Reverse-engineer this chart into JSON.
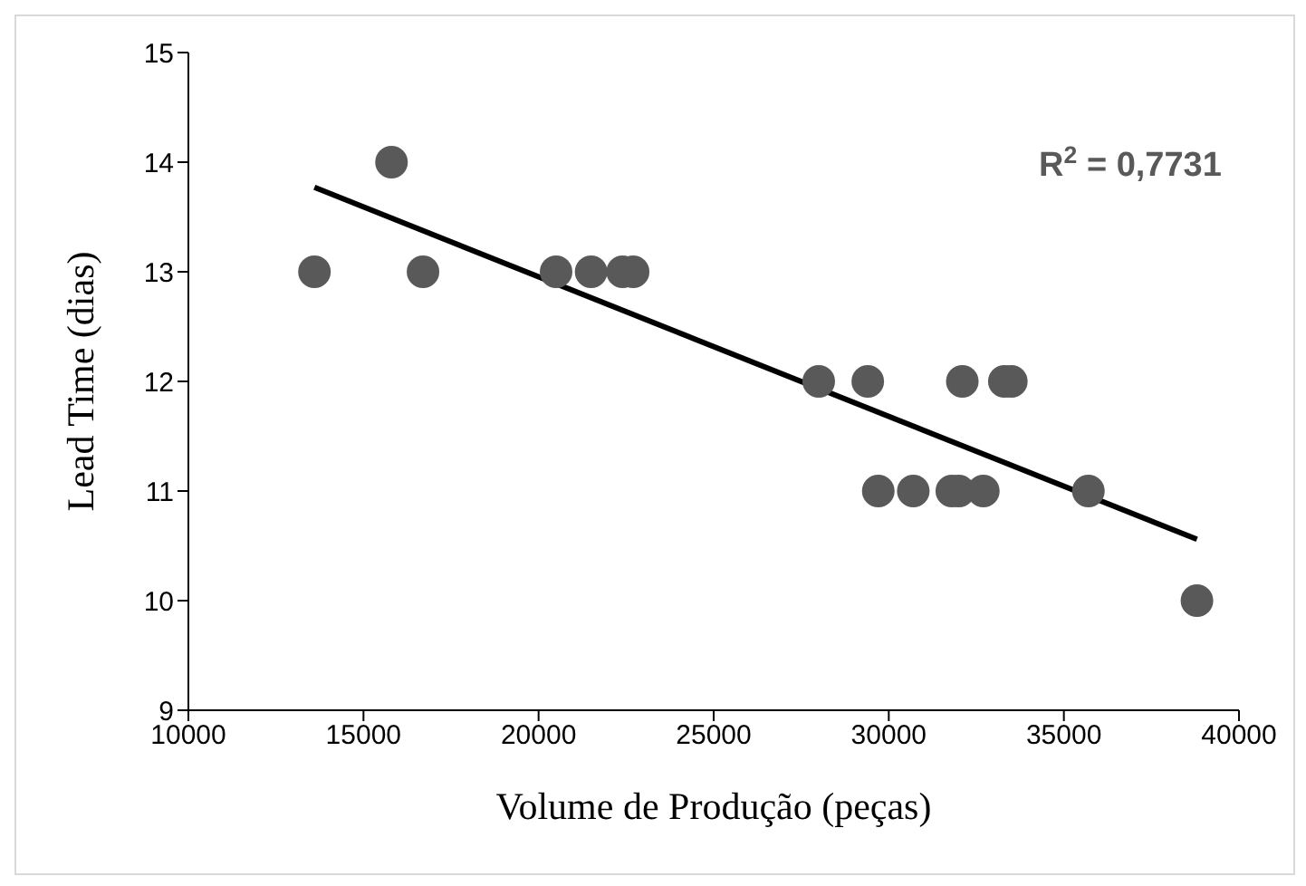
{
  "chart_data": {
    "type": "scatter",
    "xlabel": "Volume de Produção (peças)",
    "ylabel": "Lead Time (dias)",
    "xlim": [
      10000,
      40000
    ],
    "xticks": [
      10000,
      15000,
      20000,
      25000,
      30000,
      35000,
      40000
    ],
    "ylim": [
      9,
      15
    ],
    "yticks": [
      9,
      10,
      11,
      12,
      13,
      14,
      15
    ],
    "grid": false,
    "legend": false,
    "annotations": [
      {
        "text": "R$^{2}$ = 0,7731"
      }
    ],
    "series": [
      {
        "marker": "circle",
        "color": "#595959",
        "x": [
          13600,
          15800,
          16700,
          20500,
          21500,
          22400,
          22700,
          28000,
          29400,
          32100,
          33300,
          33500,
          29700,
          30700,
          31800,
          32000,
          32700,
          35700,
          38800
        ],
        "values": [
          13,
          14,
          13,
          13,
          13,
          13,
          13,
          12,
          12,
          12,
          12,
          12,
          11,
          11,
          11,
          11,
          11,
          11,
          10
        ]
      },
      {
        "type": "line",
        "marker": "none",
        "color": "#000000",
        "x": [
          13600,
          38800
        ],
        "values": [
          13.77,
          10.56
        ]
      }
    ]
  }
}
